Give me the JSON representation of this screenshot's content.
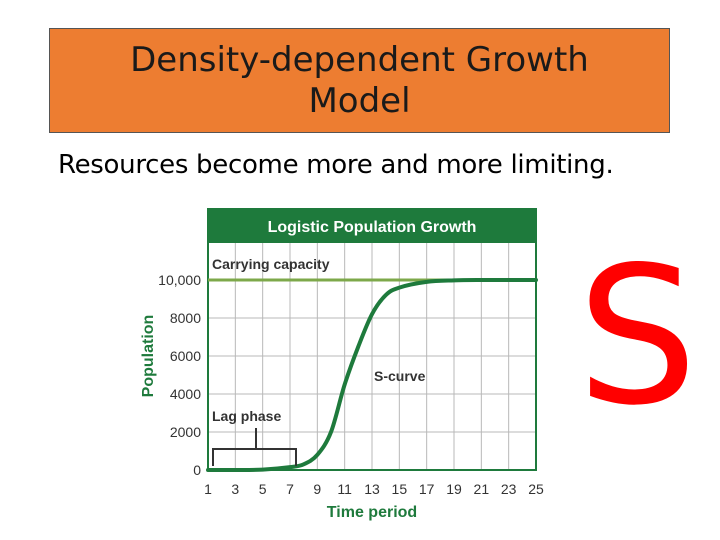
{
  "slide": {
    "title": "Density-dependent Growth Model",
    "subtitle": "Resources become more and more limiting.",
    "side_letter": "S"
  },
  "colors": {
    "title_bg": "#ED7D31",
    "chart_header": "#1E7A3C",
    "capacity_line": "#7DA84A",
    "curve": "#1E7A3C",
    "axis_label": "#1E7A3C",
    "side_letter": "#FF0000"
  },
  "chart_data": {
    "type": "line",
    "title": "Logistic Population Growth",
    "xlabel": "Time period",
    "ylabel": "Population",
    "xlim": [
      1,
      25
    ],
    "ylim": [
      0,
      10000
    ],
    "x_ticks": [
      1,
      3,
      5,
      7,
      9,
      11,
      13,
      15,
      17,
      19,
      21,
      23,
      25
    ],
    "y_ticks": [
      0,
      2000,
      4000,
      6000,
      8000,
      10000
    ],
    "y_tick_labels": [
      "0",
      "2000",
      "4000",
      "6000",
      "8000",
      "10,000"
    ],
    "grid": true,
    "series": [
      {
        "x": [
          1,
          3,
          5,
          7,
          8,
          9,
          10,
          11,
          12,
          13,
          14,
          15,
          17,
          19,
          21,
          23,
          25
        ],
        "y": [
          0,
          0,
          20,
          150,
          300,
          800,
          2000,
          4500,
          6500,
          8200,
          9200,
          9600,
          9900,
          9980,
          10000,
          10000,
          10000
        ]
      }
    ],
    "carrying_capacity": 10000,
    "annotations": {
      "carrying_capacity": "Carrying capacity",
      "s_curve": "S-curve",
      "lag_phase": "Lag phase"
    }
  }
}
